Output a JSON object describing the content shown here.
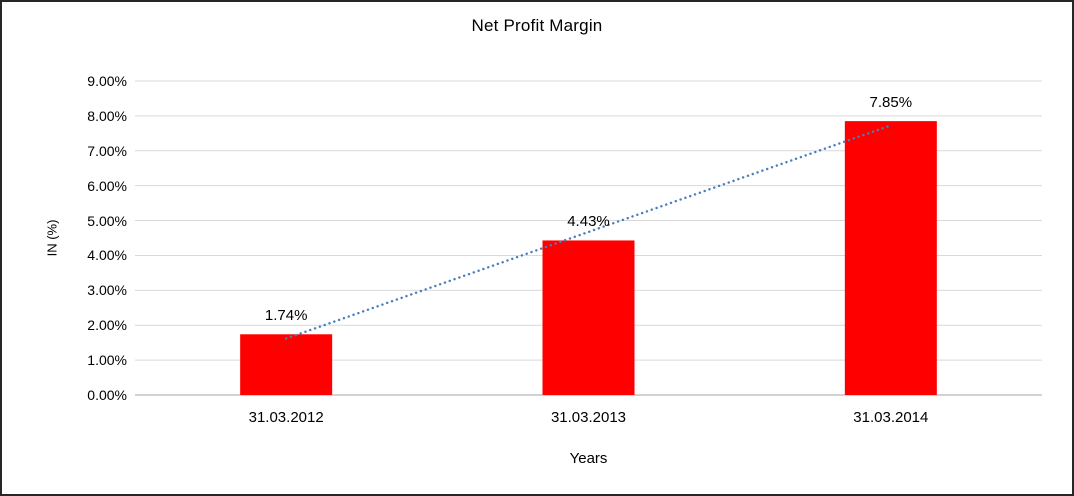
{
  "chart_data": {
    "type": "bar",
    "title": "Net Profit Margin",
    "xlabel": "Years",
    "ylabel": "IN (%)",
    "categories": [
      "31.03.2012",
      "31.03.2013",
      "31.03.2014"
    ],
    "values": [
      1.74,
      4.43,
      7.85
    ],
    "data_labels": [
      "1.74%",
      "4.43%",
      "7.85%"
    ],
    "ylim": [
      0,
      9
    ],
    "ytick_step": 1,
    "ytick_labels": [
      "0.00%",
      "1.00%",
      "2.00%",
      "3.00%",
      "4.00%",
      "5.00%",
      "6.00%",
      "7.00%",
      "8.00%",
      "9.00%"
    ],
    "bar_color": "#FF0000",
    "gridline_color": "#D9D9D9",
    "axis_line_color": "#A6A6A6",
    "legend": "none",
    "grid": "horizontal",
    "trendline": {
      "type": "linear",
      "style": "dotted",
      "color": "#4A7EBB"
    }
  }
}
